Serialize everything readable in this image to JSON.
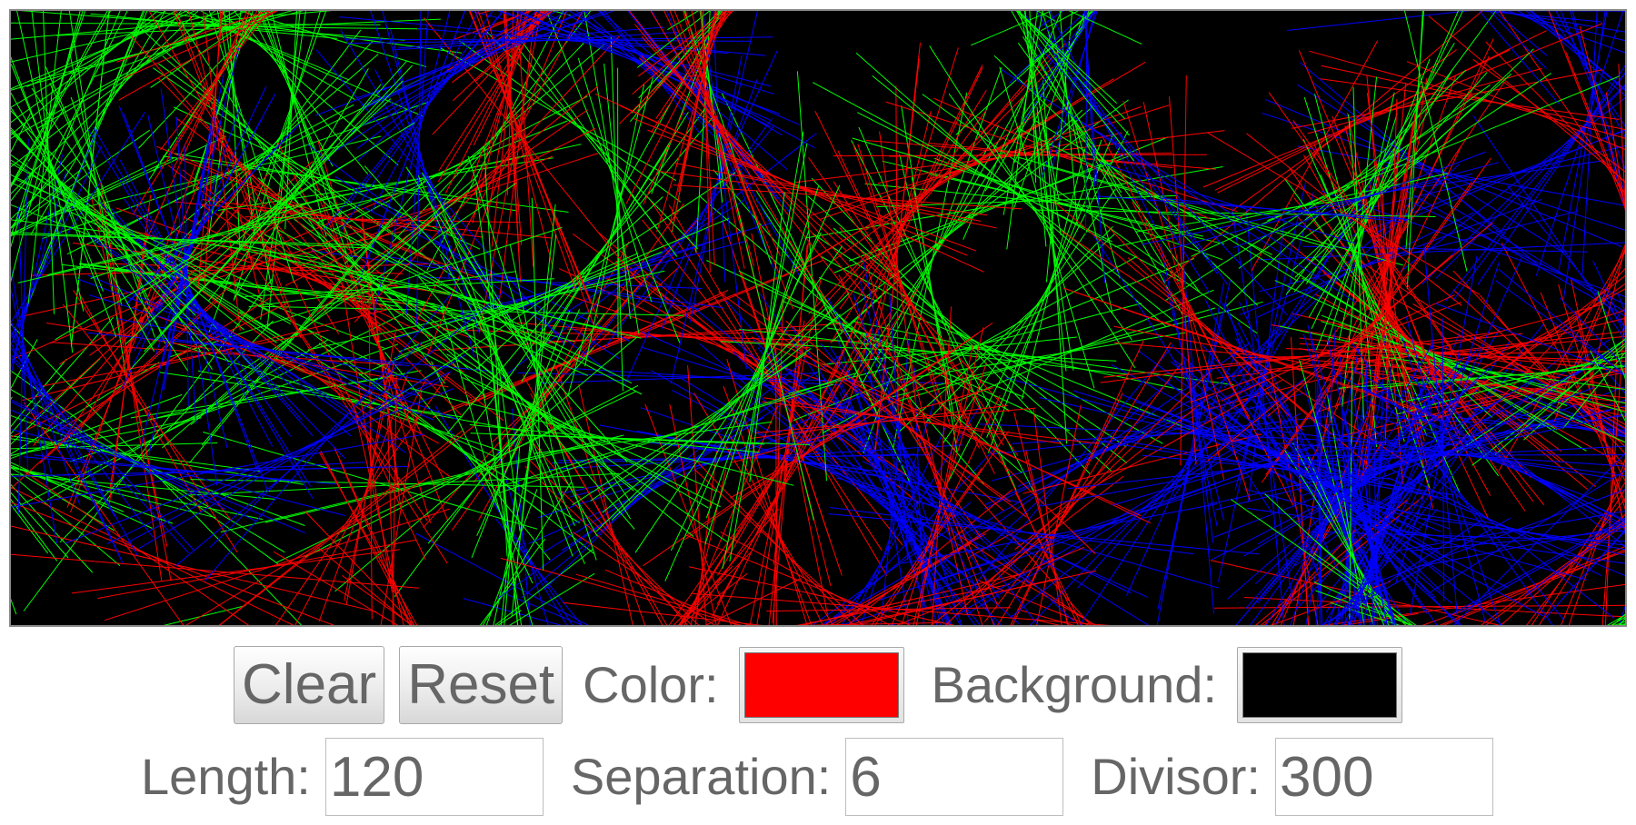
{
  "controls": {
    "clear_label": "Clear",
    "reset_label": "Reset",
    "color_label": "Color:",
    "color_value": "#ff0000",
    "background_label": "Background:",
    "background_value": "#000000",
    "length_label": "Length:",
    "length_value": "120",
    "separation_label": "Separation:",
    "separation_value": "6",
    "divisor_label": "Divisor:",
    "divisor_value": "300"
  },
  "artwork": {
    "stroke_colors": [
      "#00ff00",
      "#ff0000",
      "#0000ff"
    ]
  }
}
